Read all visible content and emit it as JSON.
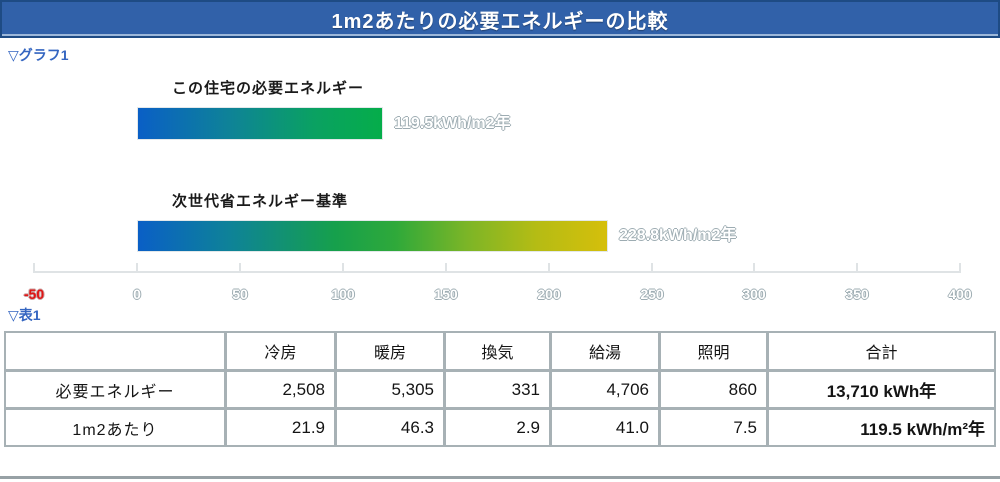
{
  "title": "1m2あたりの必要エネルギーの比較",
  "sections": {
    "graph_label": "▽グラフ1",
    "table_label": "▽表1"
  },
  "chart_data": {
    "type": "bar",
    "orientation": "horizontal",
    "bars": [
      {
        "name": "この住宅の必要エネルギー",
        "value": 119.5,
        "value_label": "119.5kWh/m2年",
        "gradient": [
          "#0A5FC6 0%",
          "#0E8397 38%",
          "#0AA162 72%",
          "#05AD4A 100%"
        ]
      },
      {
        "name": "次世代省エネルギー基準",
        "value": 228.8,
        "value_label": "228.8kWh/m2年",
        "gradient": [
          "#0A5FC6 0%",
          "#0E8397 20%",
          "#16A04C 42%",
          "#2FA93A 55%",
          "#7BB527 70%",
          "#B5BC14 85%",
          "#D5BF0B 100%"
        ]
      }
    ],
    "axis": {
      "min": -50,
      "max": 400,
      "ticks": [
        -50,
        0,
        50,
        100,
        150,
        200,
        250,
        300,
        350,
        400
      ],
      "negative_tick_color": "#E01414"
    },
    "grid": false,
    "legend": false
  },
  "table": {
    "headers": [
      "",
      "冷房",
      "暖房",
      "換気",
      "給湯",
      "照明",
      "合計"
    ],
    "rows": [
      {
        "label": "必要エネルギー",
        "values": [
          "2,508",
          "5,305",
          "331",
          "4,706",
          "860"
        ],
        "total": "13,710 kWh年"
      },
      {
        "label": "1m2あたり",
        "values": [
          "21.9",
          "46.3",
          "2.9",
          "41.0",
          "7.5"
        ],
        "total": "119.5 kWh/m²年"
      }
    ]
  },
  "colors": {
    "titlebar_bg": "#3161A9",
    "titlebar_border": "#1E4B84",
    "section_label": "#3566C1",
    "ghost_text": "#FFFFFF",
    "ghost_outline": "#9DACB2",
    "axis_line": "#DFE3E5",
    "negative_label": "#E01414",
    "table_grid": "#A7B1B5",
    "bottom_rule": "#97A1A5"
  }
}
